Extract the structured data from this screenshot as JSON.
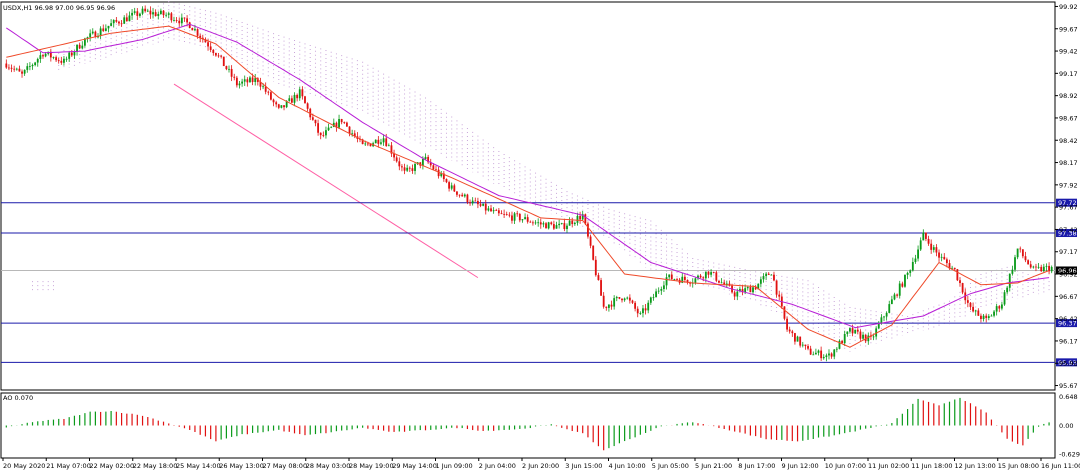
{
  "chart_data": {
    "type": "candlestick",
    "symbol_label": "USDX,H1",
    "ohlc_label": "96.98 97.00 96.95 96.96",
    "last_price": "96.96",
    "yticks": [
      "99.92",
      "99.67",
      "99.42",
      "99.17",
      "98.92",
      "98.67",
      "98.42",
      "98.17",
      "97.92",
      "97.67",
      "97.42",
      "97.17",
      "96.92",
      "96.67",
      "96.42",
      "96.17",
      "95.92",
      "95.67"
    ],
    "ylim": [
      95.62,
      99.97
    ],
    "xticks": [
      "20 May 2020",
      "21 May 07:00",
      "22 May 02:00",
      "22 May 18:00",
      "25 May 14:00",
      "26 May 13:00",
      "27 May 08:00",
      "28 May 03:00",
      "28 May 19:00",
      "29 May 14:00",
      "1 Jun 09:00",
      "2 Jun 04:00",
      "2 Jun 20:00",
      "3 Jun 15:00",
      "4 Jun 10:00",
      "5 Jun 05:00",
      "5 Jun 21:00",
      "8 Jun 17:00",
      "9 Jun 12:00",
      "10 Jun 07:00",
      "11 Jun 02:00",
      "11 Jun 18:00",
      "12 Jun 13:00",
      "15 Jun 08:00",
      "16 Jun 11:00"
    ],
    "hlines": [
      {
        "label": "97.72",
        "value": 97.72,
        "color": "#1a1aaa"
      },
      {
        "label": "97.38",
        "value": 97.38,
        "color": "#1a1aaa"
      },
      {
        "label": "96.37",
        "value": 96.37,
        "color": "#1a1aaa"
      },
      {
        "label": "95.93",
        "value": 95.93,
        "color": "#1a1aaa"
      }
    ],
    "close_keys": [
      [
        0,
        99.28
      ],
      [
        6,
        99.15
      ],
      [
        14,
        99.4
      ],
      [
        22,
        99.3
      ],
      [
        30,
        99.55
      ],
      [
        40,
        99.72
      ],
      [
        52,
        99.86
      ],
      [
        62,
        99.82
      ],
      [
        70,
        99.72
      ],
      [
        80,
        99.4
      ],
      [
        88,
        99.05
      ],
      [
        96,
        99.1
      ],
      [
        104,
        98.75
      ],
      [
        112,
        98.95
      ],
      [
        120,
        98.45
      ],
      [
        128,
        98.65
      ],
      [
        136,
        98.35
      ],
      [
        144,
        98.45
      ],
      [
        152,
        98.05
      ],
      [
        160,
        98.2
      ],
      [
        170,
        97.88
      ],
      [
        178,
        97.72
      ],
      [
        188,
        97.58
      ],
      [
        196,
        97.55
      ],
      [
        204,
        97.48
      ],
      [
        212,
        97.45
      ],
      [
        220,
        97.58
      ],
      [
        228,
        96.55
      ],
      [
        236,
        96.68
      ],
      [
        242,
        96.45
      ],
      [
        252,
        96.88
      ],
      [
        262,
        96.85
      ],
      [
        268,
        96.95
      ],
      [
        278,
        96.7
      ],
      [
        286,
        96.78
      ],
      [
        292,
        96.95
      ],
      [
        298,
        96.3
      ],
      [
        306,
        96.05
      ],
      [
        314,
        96.0
      ],
      [
        322,
        96.28
      ],
      [
        330,
        96.18
      ],
      [
        338,
        96.62
      ],
      [
        344,
        96.92
      ],
      [
        350,
        97.35
      ],
      [
        356,
        97.12
      ],
      [
        362,
        96.96
      ],
      [
        368,
        96.52
      ],
      [
        374,
        96.4
      ],
      [
        380,
        96.6
      ],
      [
        386,
        97.2
      ],
      [
        392,
        96.96
      ],
      [
        398,
        96.99
      ]
    ],
    "ma_red_keys": [
      [
        0,
        99.35
      ],
      [
        40,
        99.62
      ],
      [
        62,
        99.7
      ],
      [
        80,
        99.5
      ],
      [
        104,
        98.9
      ],
      [
        136,
        98.42
      ],
      [
        170,
        98.0
      ],
      [
        204,
        97.55
      ],
      [
        220,
        97.52
      ],
      [
        236,
        96.92
      ],
      [
        262,
        96.82
      ],
      [
        286,
        96.78
      ],
      [
        306,
        96.3
      ],
      [
        322,
        96.1
      ],
      [
        338,
        96.35
      ],
      [
        356,
        97.05
      ],
      [
        372,
        96.8
      ],
      [
        386,
        96.82
      ],
      [
        398,
        96.96
      ]
    ],
    "ma_purple_keys": [
      [
        0,
        99.68
      ],
      [
        14,
        99.4
      ],
      [
        30,
        99.42
      ],
      [
        52,
        99.55
      ],
      [
        70,
        99.72
      ],
      [
        88,
        99.52
      ],
      [
        112,
        99.1
      ],
      [
        136,
        98.62
      ],
      [
        160,
        98.2
      ],
      [
        188,
        97.8
      ],
      [
        220,
        97.58
      ],
      [
        246,
        97.05
      ],
      [
        276,
        96.76
      ],
      [
        300,
        96.58
      ],
      [
        324,
        96.32
      ],
      [
        350,
        96.45
      ],
      [
        368,
        96.7
      ],
      [
        382,
        96.82
      ],
      [
        398,
        96.88
      ]
    ],
    "cloud_top_keys": [
      [
        20,
        99.4
      ],
      [
        40,
        99.7
      ],
      [
        62,
        99.98
      ],
      [
        80,
        99.85
      ],
      [
        104,
        99.6
      ],
      [
        136,
        99.3
      ],
      [
        160,
        98.9
      ],
      [
        188,
        98.3
      ],
      [
        214,
        97.85
      ],
      [
        230,
        97.65
      ],
      [
        246,
        97.52
      ],
      [
        262,
        97.1
      ],
      [
        286,
        96.95
      ],
      [
        306,
        96.85
      ],
      [
        322,
        96.55
      ],
      [
        344,
        96.45
      ],
      [
        360,
        96.62
      ],
      [
        372,
        96.92
      ],
      [
        382,
        97.0
      ],
      [
        398,
        96.84
      ]
    ],
    "cloud_bot_keys": [
      [
        20,
        99.2
      ],
      [
        40,
        99.35
      ],
      [
        62,
        99.55
      ],
      [
        80,
        99.4
      ],
      [
        104,
        99.05
      ],
      [
        136,
        98.75
      ],
      [
        160,
        98.35
      ],
      [
        188,
        97.9
      ],
      [
        214,
        97.5
      ],
      [
        230,
        97.3
      ],
      [
        246,
        96.95
      ],
      [
        262,
        96.82
      ],
      [
        286,
        96.6
      ],
      [
        306,
        96.3
      ],
      [
        322,
        96.05
      ],
      [
        344,
        96.25
      ],
      [
        360,
        96.35
      ],
      [
        372,
        96.52
      ],
      [
        382,
        96.62
      ],
      [
        398,
        96.72
      ]
    ],
    "channel_line": {
      "from": [
        64,
        99.05
      ],
      "to": [
        180,
        96.88
      ],
      "color": "#ff5fa5"
    },
    "ao": {
      "label": "AO 0.070",
      "yticks": [
        "0.648",
        "0.00",
        "-0.629"
      ],
      "ylim": [
        -0.72,
        0.72
      ],
      "value_keys": [
        [
          0,
          -0.05
        ],
        [
          10,
          0.08
        ],
        [
          22,
          0.15
        ],
        [
          32,
          0.3
        ],
        [
          40,
          0.32
        ],
        [
          52,
          0.22
        ],
        [
          62,
          0.05
        ],
        [
          70,
          -0.1
        ],
        [
          80,
          -0.35
        ],
        [
          90,
          -0.2
        ],
        [
          104,
          -0.1
        ],
        [
          114,
          -0.22
        ],
        [
          124,
          -0.15
        ],
        [
          136,
          -0.05
        ],
        [
          148,
          -0.15
        ],
        [
          160,
          -0.1
        ],
        [
          172,
          -0.05
        ],
        [
          182,
          -0.12
        ],
        [
          196,
          -0.08
        ],
        [
          208,
          0.02
        ],
        [
          220,
          -0.18
        ],
        [
          228,
          -0.55
        ],
        [
          238,
          -0.3
        ],
        [
          250,
          -0.02
        ],
        [
          262,
          0.08
        ],
        [
          276,
          -0.1
        ],
        [
          290,
          -0.3
        ],
        [
          302,
          -0.35
        ],
        [
          316,
          -0.22
        ],
        [
          326,
          -0.1
        ],
        [
          338,
          0.05
        ],
        [
          348,
          0.58
        ],
        [
          356,
          0.45
        ],
        [
          364,
          0.62
        ],
        [
          374,
          0.28
        ],
        [
          382,
          -0.3
        ],
        [
          388,
          -0.45
        ],
        [
          394,
          -0.02
        ],
        [
          398,
          0.07
        ]
      ]
    }
  }
}
